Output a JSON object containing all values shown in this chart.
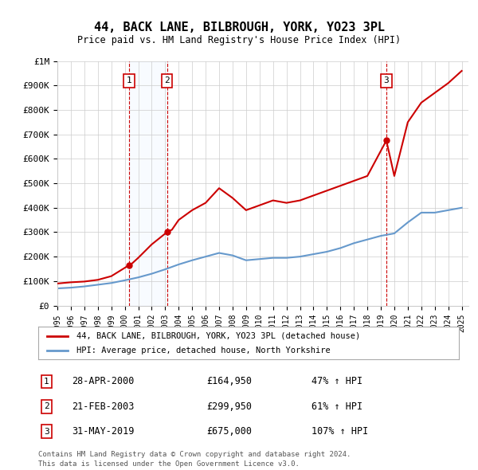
{
  "title": "44, BACK LANE, BILBROUGH, YORK, YO23 3PL",
  "subtitle": "Price paid vs. HM Land Registry's House Price Index (HPI)",
  "legend_property": "44, BACK LANE, BILBROUGH, YORK, YO23 3PL (detached house)",
  "legend_hpi": "HPI: Average price, detached house, North Yorkshire",
  "footer_line1": "Contains HM Land Registry data © Crown copyright and database right 2024.",
  "footer_line2": "This data is licensed under the Open Government Licence v3.0.",
  "sales": [
    {
      "num": 1,
      "date": "28-APR-2000",
      "price": 164950,
      "pct": "47%",
      "year": 2000.32
    },
    {
      "num": 2,
      "date": "21-FEB-2003",
      "price": 299950,
      "pct": "61%",
      "year": 2003.13
    },
    {
      "num": 3,
      "date": "31-MAY-2019",
      "price": 675000,
      "pct": "107%",
      "year": 2019.41
    }
  ],
  "property_color": "#cc0000",
  "hpi_color": "#6699cc",
  "sale_marker_color": "#cc0000",
  "vline_color": "#cc0000",
  "shaded_color": "#ddeeff",
  "grid_color": "#cccccc",
  "bg_color": "#ffffff",
  "ylim": [
    0,
    1000000
  ],
  "xlim": [
    1995,
    2025.5
  ],
  "yticks": [
    0,
    100000,
    200000,
    300000,
    400000,
    500000,
    600000,
    700000,
    800000,
    900000,
    1000000
  ],
  "ytick_labels": [
    "£0",
    "£100K",
    "£200K",
    "£300K",
    "£400K",
    "£500K",
    "£600K",
    "£700K",
    "£800K",
    "£900K",
    "£1M"
  ],
  "xticks": [
    1995,
    1996,
    1997,
    1998,
    1999,
    2000,
    2001,
    2002,
    2003,
    2004,
    2005,
    2006,
    2007,
    2008,
    2009,
    2010,
    2011,
    2012,
    2013,
    2014,
    2015,
    2016,
    2017,
    2018,
    2019,
    2020,
    2021,
    2022,
    2023,
    2024,
    2025
  ],
  "property_line": {
    "x": [
      1995,
      1996,
      1997,
      1998,
      1999,
      2000.32,
      2000.5,
      2001,
      2002,
      2003.13,
      2003.5,
      2004,
      2005,
      2006,
      2007,
      2008,
      2009,
      2010,
      2011,
      2012,
      2013,
      2014,
      2015,
      2016,
      2017,
      2018,
      2019.41,
      2020,
      2021,
      2022,
      2023,
      2024,
      2025
    ],
    "y": [
      90000,
      95000,
      98000,
      105000,
      120000,
      164950,
      170000,
      195000,
      250000,
      299950,
      310000,
      350000,
      390000,
      420000,
      480000,
      440000,
      390000,
      410000,
      430000,
      420000,
      430000,
      450000,
      470000,
      490000,
      510000,
      530000,
      675000,
      530000,
      750000,
      830000,
      870000,
      910000,
      960000
    ]
  },
  "hpi_line": {
    "x": [
      1995,
      1996,
      1997,
      1998,
      1999,
      2000,
      2001,
      2002,
      2003,
      2004,
      2005,
      2006,
      2007,
      2008,
      2009,
      2010,
      2011,
      2012,
      2013,
      2014,
      2015,
      2016,
      2017,
      2018,
      2019,
      2020,
      2021,
      2022,
      2023,
      2024,
      2025
    ],
    "y": [
      70000,
      73000,
      78000,
      85000,
      92000,
      103000,
      115000,
      130000,
      148000,
      168000,
      185000,
      200000,
      215000,
      205000,
      185000,
      190000,
      195000,
      195000,
      200000,
      210000,
      220000,
      235000,
      255000,
      270000,
      285000,
      295000,
      340000,
      380000,
      380000,
      390000,
      400000
    ]
  }
}
